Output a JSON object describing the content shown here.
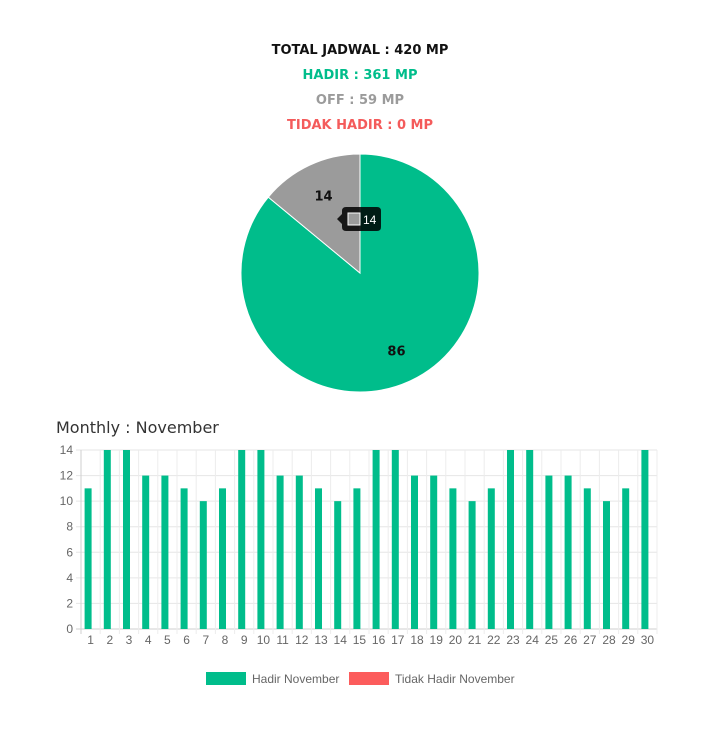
{
  "summary": {
    "total": "TOTAL JADWAL : 420 MP",
    "hadir": "HADIR : 361 MP",
    "off": "OFF : 59 MP",
    "tidak_hadir": "TIDAK HADIR : 0 MP"
  },
  "colors": {
    "hadir": "#00bd8b",
    "off": "#9b9b9b",
    "tidak_hadir": "#fc5c5c",
    "tooltip_bg": "#000000"
  },
  "chart_data": [
    {
      "type": "pie",
      "labels": [
        "Hadir",
        "Off"
      ],
      "values": [
        86,
        14
      ],
      "colors": [
        "#00bd8b",
        "#9b9b9b"
      ],
      "tooltip": {
        "slice": "Off",
        "value": "14"
      }
    },
    {
      "type": "bar",
      "title": "Monthly : November",
      "categories": [
        "1",
        "2",
        "3",
        "4",
        "5",
        "6",
        "7",
        "8",
        "9",
        "10",
        "11",
        "12",
        "13",
        "14",
        "15",
        "16",
        "17",
        "18",
        "19",
        "20",
        "21",
        "22",
        "23",
        "24",
        "25",
        "26",
        "27",
        "28",
        "29",
        "30"
      ],
      "series": [
        {
          "name": "Hadir November",
          "color": "#00bd8b",
          "values": [
            11,
            14,
            14,
            12,
            12,
            11,
            10,
            11,
            14,
            14,
            12,
            12,
            11,
            10,
            11,
            14,
            14,
            12,
            12,
            11,
            10,
            11,
            14,
            14,
            12,
            12,
            11,
            10,
            11,
            14
          ]
        },
        {
          "name": "Tidak Hadir November",
          "color": "#fc5c5c",
          "values": [
            0,
            0,
            0,
            0,
            0,
            0,
            0,
            0,
            0,
            0,
            0,
            0,
            0,
            0,
            0,
            0,
            0,
            0,
            0,
            0,
            0,
            0,
            0,
            0,
            0,
            0,
            0,
            0,
            0,
            0
          ]
        }
      ],
      "ylim": [
        0,
        14
      ],
      "yticks": [
        0,
        2,
        4,
        6,
        8,
        10,
        12,
        14
      ],
      "grid": true,
      "legend": "bottom"
    }
  ]
}
